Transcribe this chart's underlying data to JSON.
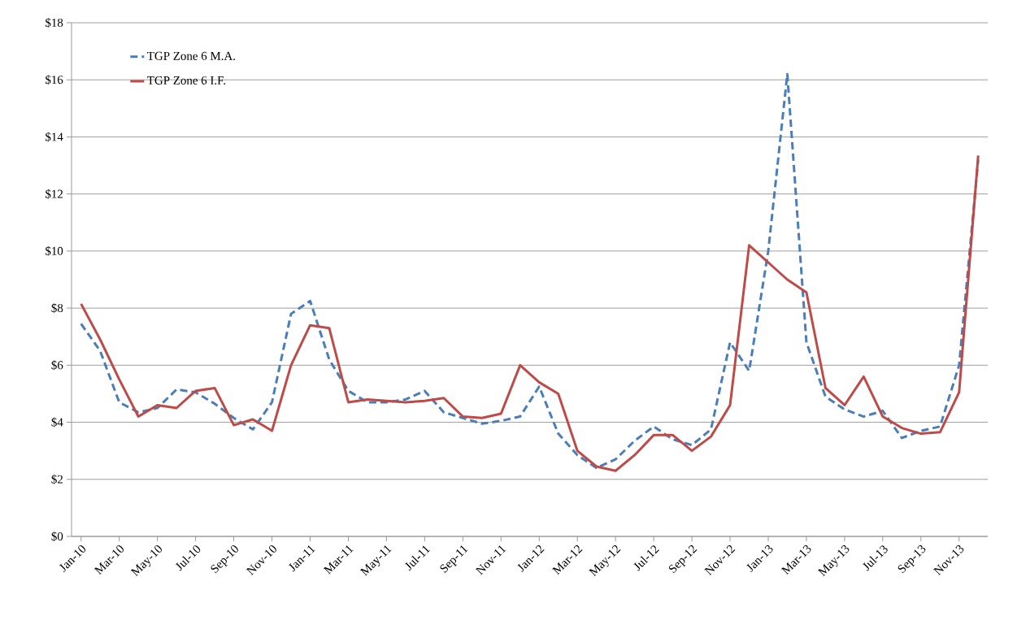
{
  "chart_data": {
    "type": "line",
    "categories": [
      "Jan-10",
      null,
      "Mar-10",
      null,
      "May-10",
      null,
      "Jul-10",
      null,
      "Sep-10",
      null,
      "Nov-10",
      null,
      "Jan-11",
      null,
      "Mar-11",
      null,
      "May-11",
      null,
      "Jul-11",
      null,
      "Sep-11",
      null,
      "Nov-11",
      null,
      "Jan-12",
      null,
      "Mar-12",
      null,
      "May-12",
      null,
      "Jul-12",
      null,
      "Sep-12",
      null,
      "Nov-12",
      null,
      "Jan-13",
      null,
      "Mar-13",
      null,
      "May-13",
      null,
      "Jul-13",
      null,
      "Sep-13",
      null,
      "Nov-13",
      null
    ],
    "series": [
      {
        "name": "TGP Zone 6 M.A.",
        "color": "#4a7ebb",
        "line_style": "dashed",
        "values": [
          7.45,
          6.5,
          4.7,
          4.35,
          4.5,
          5.15,
          5.05,
          4.65,
          4.15,
          3.75,
          4.7,
          7.8,
          8.25,
          6.2,
          5.1,
          4.7,
          4.7,
          4.8,
          5.1,
          4.35,
          4.15,
          3.95,
          4.05,
          4.2,
          5.25,
          3.6,
          2.85,
          2.4,
          2.7,
          3.35,
          3.85,
          3.4,
          3.2,
          3.75,
          6.8,
          5.8,
          10.0,
          16.2,
          6.8,
          4.9,
          4.45,
          4.2,
          4.4,
          3.45,
          3.7,
          3.85,
          6.0,
          13.2
        ]
      },
      {
        "name": "TGP Zone 6 I.F.",
        "color": "#be4b48",
        "line_style": "solid",
        "values": [
          8.15,
          6.9,
          5.5,
          4.2,
          4.6,
          4.5,
          5.1,
          5.2,
          3.9,
          4.1,
          3.7,
          6.0,
          7.4,
          7.3,
          4.7,
          4.8,
          4.75,
          4.7,
          4.75,
          4.85,
          4.2,
          4.15,
          4.3,
          6.0,
          5.4,
          5.0,
          3.0,
          2.45,
          2.3,
          2.85,
          3.55,
          3.55,
          3.0,
          3.5,
          4.6,
          10.2,
          9.6,
          9.0,
          8.55,
          5.2,
          4.6,
          5.6,
          4.2,
          3.8,
          3.6,
          3.65,
          5.05,
          13.35
        ]
      }
    ],
    "ylim": [
      0,
      18
    ],
    "yticks": [
      {
        "value": 0,
        "label": "$0"
      },
      {
        "value": 2,
        "label": "$2"
      },
      {
        "value": 4,
        "label": "$4"
      },
      {
        "value": 6,
        "label": "$6"
      },
      {
        "value": 8,
        "label": "$8"
      },
      {
        "value": 10,
        "label": "$10"
      },
      {
        "value": 12,
        "label": "$12"
      },
      {
        "value": 14,
        "label": "$14"
      },
      {
        "value": 16,
        "label": "$16"
      },
      {
        "value": 18,
        "label": "$18"
      }
    ],
    "grid": "y",
    "legend": "top left",
    "marker": "none"
  }
}
